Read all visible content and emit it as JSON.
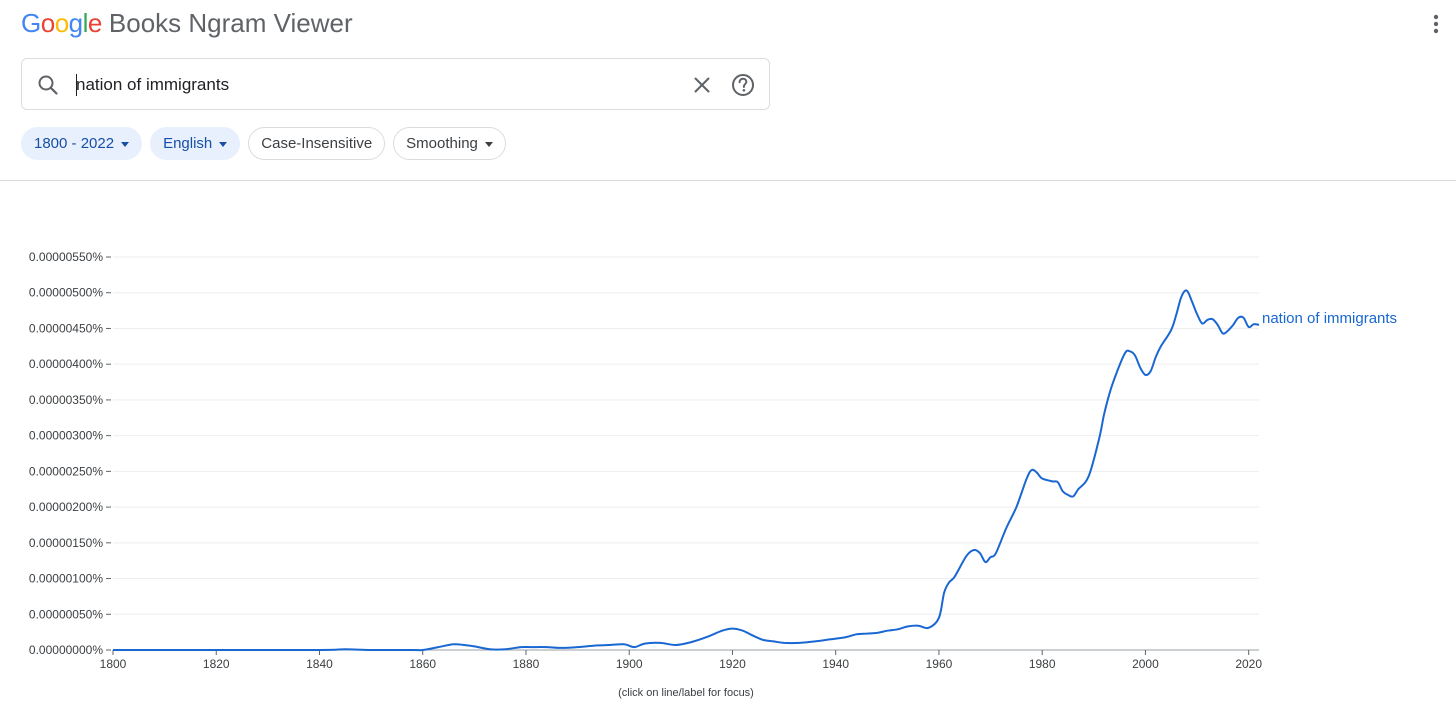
{
  "header": {
    "logo_google": "Google",
    "logo_product": "Books Ngram Viewer",
    "menu_icon": "more-vert-icon"
  },
  "search": {
    "query": "nation of immigrants",
    "search_icon": "search-icon",
    "clear_icon": "close-icon",
    "help_icon": "help-icon"
  },
  "filters": {
    "year_range": "1800 - 2022",
    "corpus": "English",
    "case": "Case-Insensitive",
    "smoothing": "Smoothing"
  },
  "colors": {
    "series": "#1967d2",
    "chip_filled_bg": "#e8f0fe",
    "chip_filled_text": "#174ea6"
  },
  "chart_data": {
    "type": "line",
    "xlabel": "",
    "ylabel": "",
    "xlim": [
      1800,
      2022
    ],
    "ylim": [
      0,
      5.5e-06
    ],
    "x_ticks": [
      "1800",
      "1820",
      "1840",
      "1860",
      "1880",
      "1900",
      "1920",
      "1940",
      "1960",
      "1980",
      "2000",
      "2020"
    ],
    "y_ticks": [
      "0.00000000%",
      "0.00000050%",
      "0.00000100%",
      "0.00000150%",
      "0.00000200%",
      "0.00000250%",
      "0.00000300%",
      "0.00000350%",
      "0.00000400%",
      "0.00000450%",
      "0.00000500%",
      "0.00000550%"
    ],
    "grid": true,
    "note": "(click on line/label for focus)",
    "series": [
      {
        "name": "nation of immigrants",
        "x": [
          1800,
          1820,
          1840,
          1845,
          1850,
          1858,
          1860,
          1863,
          1866,
          1868,
          1870,
          1873,
          1876,
          1879,
          1881,
          1884,
          1887,
          1890,
          1893,
          1896,
          1899,
          1901,
          1903,
          1906,
          1909,
          1912,
          1915,
          1918,
          1920,
          1922,
          1924,
          1926,
          1928,
          1930,
          1933,
          1936,
          1939,
          1942,
          1944,
          1946,
          1948,
          1950,
          1952,
          1954,
          1956,
          1958,
          1960,
          1961,
          1962,
          1963,
          1965,
          1966,
          1967,
          1968,
          1969,
          1970,
          1971,
          1973,
          1975,
          1977,
          1978,
          1979,
          1980,
          1982,
          1983,
          1984,
          1985,
          1986,
          1987,
          1989,
          1991,
          1992,
          1993,
          1994,
          1996,
          1997,
          1998,
          1999,
          2000,
          2001,
          2002,
          2003,
          2005,
          2006,
          2007,
          2008,
          2009,
          2010,
          2011,
          2012,
          2013,
          2014,
          2015,
          2016,
          2017,
          2018,
          2019,
          2020,
          2021,
          2022
        ],
        "values": [
          0,
          0,
          0,
          1e-08,
          0,
          0,
          0,
          4e-08,
          8e-08,
          7e-08,
          5e-08,
          1e-08,
          1e-08,
          4e-08,
          4e-08,
          4e-08,
          3e-08,
          4e-08,
          6e-08,
          7e-08,
          8e-08,
          4e-08,
          9e-08,
          1e-07,
          7e-08,
          1.1e-07,
          1.8e-07,
          2.7e-07,
          3e-07,
          2.7e-07,
          2e-07,
          1.4e-07,
          1.2e-07,
          1e-07,
          1e-07,
          1.2e-07,
          1.5e-07,
          1.8e-07,
          2.2e-07,
          2.3e-07,
          2.4e-07,
          2.7e-07,
          2.9e-07,
          3.3e-07,
          3.4e-07,
          3.1e-07,
          4.5e-07,
          8e-07,
          9.5e-07,
          1.02e-06,
          1.28e-06,
          1.37e-06,
          1.4e-06,
          1.35e-06,
          1.23e-06,
          1.3e-06,
          1.35e-06,
          1.7e-06,
          2e-06,
          2.4e-06,
          2.52e-06,
          2.48e-06,
          2.4e-06,
          2.36e-06,
          2.35e-06,
          2.22e-06,
          2.17e-06,
          2.15e-06,
          2.25e-06,
          2.43e-06,
          2.95e-06,
          3.3e-06,
          3.58e-06,
          3.8e-06,
          4.15e-06,
          4.18e-06,
          4.12e-06,
          3.95e-06,
          3.85e-06,
          3.9e-06,
          4.1e-06,
          4.25e-06,
          4.48e-06,
          4.7e-06,
          4.95e-06,
          5.03e-06,
          4.88e-06,
          4.7e-06,
          4.57e-06,
          4.62e-06,
          4.63e-06,
          4.55e-06,
          4.43e-06,
          4.47e-06,
          4.55e-06,
          4.65e-06,
          4.65e-06,
          4.52e-06,
          4.56e-06,
          4.55e-06
        ]
      }
    ]
  }
}
